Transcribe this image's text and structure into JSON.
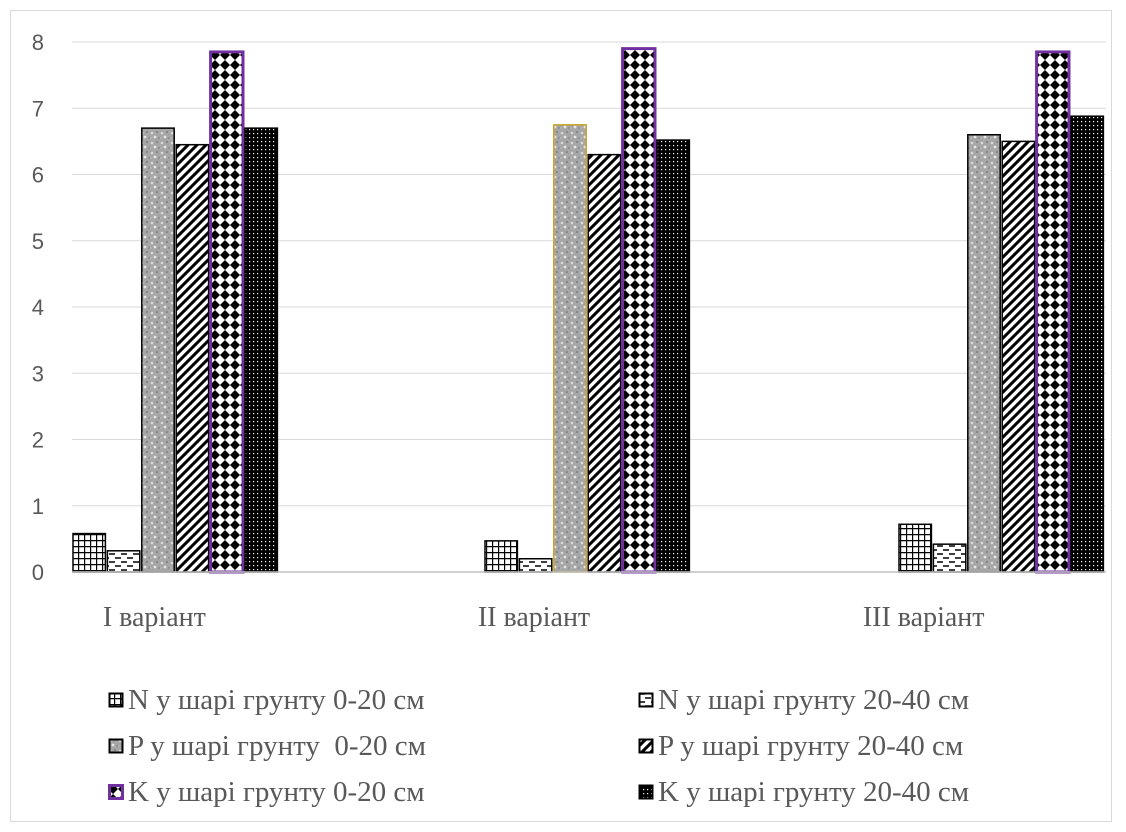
{
  "chart_data": {
    "type": "bar",
    "categories": [
      "І варіант",
      "ІІ варіант",
      "ІІІ варіант"
    ],
    "series": [
      {
        "name": "N у шарі грунту 0-20 см",
        "values": [
          0.58,
          0.47,
          0.72
        ],
        "pattern": "grid"
      },
      {
        "name": "N у шарі грунту 20-40 см",
        "values": [
          0.32,
          0.2,
          0.42
        ],
        "pattern": "dashes"
      },
      {
        "name": "P у шарі грунту  0-20 см",
        "values": [
          6.7,
          6.75,
          6.6
        ],
        "pattern": "granite"
      },
      {
        "name": "P у шарі грунту 20-40 см",
        "values": [
          6.45,
          6.3,
          6.5
        ],
        "pattern": "diagonal"
      },
      {
        "name": "K у шарі грунту 0-20 см",
        "values": [
          7.85,
          7.9,
          7.85
        ],
        "pattern": "diamonds",
        "border": "#7030a0"
      },
      {
        "name": "K у шарі грунту 20-40 см",
        "values": [
          6.7,
          6.52,
          6.88
        ],
        "pattern": "dots"
      }
    ],
    "ylim": [
      0,
      8
    ],
    "yticks": [
      "0",
      "1",
      "2",
      "3",
      "4",
      "5",
      "6",
      "7",
      "8"
    ],
    "grid": true,
    "legend_position": "bottom",
    "colors": {
      "axis": "#bfbfbf",
      "grid": "#d9d9d9",
      "text": "#595959",
      "k_border": "#7030a0",
      "p_border_mid": "#c9a227"
    }
  }
}
